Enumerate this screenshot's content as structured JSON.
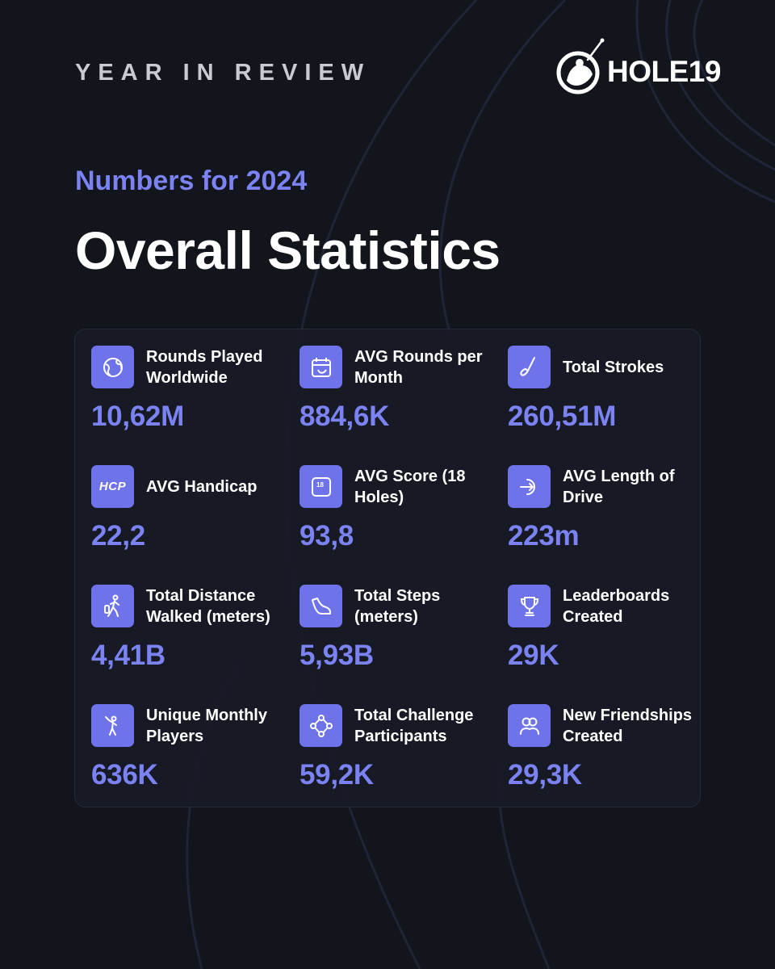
{
  "header": {
    "kicker": "YEAR IN REVIEW",
    "logo_text": "HOLE19",
    "subtitle": "Numbers for 2024",
    "title": "Overall Statistics"
  },
  "colors": {
    "background": "#13151c",
    "accent": "#7b82f2",
    "icon_bg": "#6e73ea",
    "card_bg": "#181b26"
  },
  "stats": [
    {
      "icon": "globe-icon",
      "label": "Rounds Played Worldwide",
      "value": "10,62M"
    },
    {
      "icon": "calendar-golf-icon",
      "label": "AVG Rounds per Month",
      "value": "884,6K"
    },
    {
      "icon": "golf-club-icon",
      "label": "Total Strokes",
      "value": "260,51M"
    },
    {
      "icon": "hcp-icon",
      "icon_text": "HCP",
      "label": "AVG Handicap",
      "value": "22,2"
    },
    {
      "icon": "scorecard-18-icon",
      "icon_text": "18",
      "label": "AVG Score (18 Holes)",
      "value": "93,8"
    },
    {
      "icon": "drive-arrow-icon",
      "label": "AVG Length of Drive",
      "value": "223m"
    },
    {
      "icon": "walking-golfer-icon",
      "label": "Total Distance Walked (meters)",
      "value": "4,41B"
    },
    {
      "icon": "shoe-icon",
      "label": "Total Steps (meters)",
      "value": "5,93B"
    },
    {
      "icon": "trophy-icon",
      "label": "Leaderboards Created",
      "value": "29K"
    },
    {
      "icon": "golfer-swing-icon",
      "label": "Unique Monthly Players",
      "value": "636K"
    },
    {
      "icon": "challenge-network-icon",
      "label": "Total Challenge Participants",
      "value": "59,2K"
    },
    {
      "icon": "friends-icon",
      "label": "New Friendships Created",
      "value": "29,3K"
    }
  ]
}
